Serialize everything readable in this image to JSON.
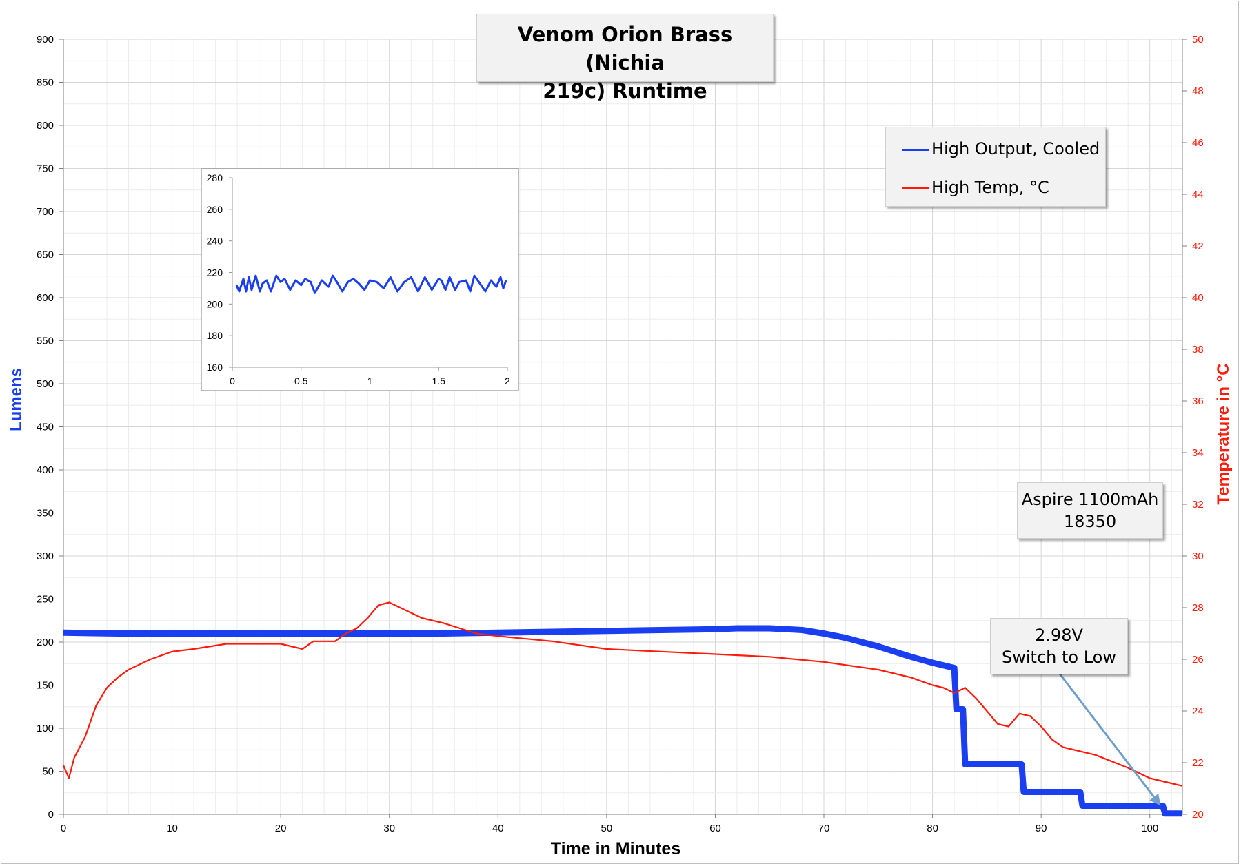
{
  "chart_data": {
    "type": "line",
    "title": "Venom Orion Brass (Nichia 219c) Runtime",
    "title_lines": [
      "Venom Orion Brass (Nichia",
      "219c) Runtime"
    ],
    "xlabel": "Time in Minutes",
    "ylabel": "Lumens",
    "y2label": "Temperature in °C",
    "xlim": [
      0,
      103
    ],
    "ylim": [
      0,
      900
    ],
    "y2lim": [
      20,
      50
    ],
    "xticks": [
      0,
      10,
      20,
      30,
      40,
      50,
      60,
      70,
      80,
      90,
      100
    ],
    "yticks": [
      0,
      50,
      100,
      150,
      200,
      250,
      300,
      350,
      400,
      450,
      500,
      550,
      600,
      650,
      700,
      750,
      800,
      850,
      900
    ],
    "y2ticks": [
      20,
      22,
      24,
      26,
      28,
      30,
      32,
      34,
      36,
      38,
      40,
      42,
      44,
      46,
      48,
      50
    ],
    "grid": true,
    "legend_position": "top-right",
    "series": [
      {
        "name": "High Output, Cooled",
        "axis": "left",
        "color": "#1a3ff0",
        "x": [
          0,
          5,
          10,
          15,
          20,
          25,
          30,
          35,
          40,
          45,
          50,
          55,
          60,
          62,
          65,
          68,
          70,
          72,
          75,
          78,
          80,
          82,
          82.2,
          82.8,
          83.0,
          88.2,
          88.4,
          93.6,
          93.8,
          101.2,
          101.4,
          103
        ],
        "y": [
          211,
          210,
          210,
          210,
          210,
          210,
          210,
          210,
          211,
          212,
          213,
          214,
          215,
          216,
          216,
          214,
          210,
          205,
          195,
          183,
          176,
          170,
          122,
          122,
          58,
          58,
          26,
          26,
          10,
          10,
          1,
          1
        ]
      },
      {
        "name": "High Temp, °C",
        "axis": "right",
        "color": "#ff1a0a",
        "x": [
          0,
          0.5,
          1,
          2,
          3,
          4,
          5,
          6,
          7,
          8,
          10,
          12,
          15,
          18,
          20,
          22,
          23,
          25,
          26,
          27,
          28,
          29,
          30,
          31,
          32,
          33,
          35,
          38,
          40,
          45,
          50,
          55,
          60,
          65,
          70,
          75,
          78,
          80,
          81,
          82,
          83,
          84,
          85,
          86,
          87,
          88,
          89,
          90,
          91,
          92,
          95,
          98,
          100,
          102,
          103
        ],
        "y": [
          21.9,
          21.4,
          22.2,
          23.0,
          24.2,
          24.9,
          25.3,
          25.6,
          25.8,
          26.0,
          26.3,
          26.4,
          26.6,
          26.6,
          26.6,
          26.4,
          26.7,
          26.7,
          27.0,
          27.2,
          27.6,
          28.1,
          28.2,
          28.0,
          27.8,
          27.6,
          27.4,
          27.0,
          26.9,
          26.7,
          26.4,
          26.3,
          26.2,
          26.1,
          25.9,
          25.6,
          25.3,
          25.0,
          24.9,
          24.7,
          24.9,
          24.5,
          24.0,
          23.5,
          23.4,
          23.9,
          23.8,
          23.4,
          22.9,
          22.6,
          22.3,
          21.8,
          21.4,
          21.2,
          21.1
        ]
      }
    ],
    "inset": {
      "type": "line",
      "xlim": [
        0,
        2
      ],
      "ylim": [
        160,
        280
      ],
      "xticks": [
        0,
        0.5,
        1,
        1.5,
        2
      ],
      "xtick_labels": [
        "0",
        "0.5",
        "1",
        "1.5",
        "2"
      ],
      "yticks": [
        160,
        180,
        200,
        220,
        240,
        260,
        280
      ],
      "color": "#1a3ff0",
      "x": [
        0.03,
        0.05,
        0.08,
        0.1,
        0.12,
        0.14,
        0.17,
        0.2,
        0.22,
        0.25,
        0.28,
        0.32,
        0.35,
        0.38,
        0.42,
        0.46,
        0.5,
        0.53,
        0.57,
        0.6,
        0.65,
        0.7,
        0.73,
        0.76,
        0.8,
        0.84,
        0.88,
        0.92,
        0.96,
        1.0,
        1.05,
        1.1,
        1.15,
        1.2,
        1.25,
        1.3,
        1.35,
        1.4,
        1.45,
        1.5,
        1.52,
        1.55,
        1.58,
        1.62,
        1.65,
        1.7,
        1.73,
        1.76,
        1.8,
        1.84,
        1.88,
        1.92,
        1.95,
        1.97,
        1.99
      ],
      "y": [
        212,
        208,
        216,
        208,
        217,
        209,
        218,
        208,
        213,
        215,
        208,
        218,
        214,
        216,
        209,
        215,
        212,
        216,
        214,
        207,
        215,
        211,
        218,
        214,
        208,
        214,
        216,
        213,
        209,
        215,
        214,
        210,
        217,
        208,
        214,
        217,
        208,
        217,
        209,
        216,
        215,
        209,
        217,
        209,
        214,
        215,
        208,
        218,
        213,
        208,
        215,
        211,
        217,
        210,
        215
      ]
    },
    "annotations": [
      {
        "id": "battery",
        "lines": [
          "Aspire 1100mAh",
          "18350"
        ]
      },
      {
        "id": "switch",
        "lines": [
          "2.98V",
          "Switch to Low"
        ],
        "arrow_to": {
          "x": 101,
          "y": 10
        }
      }
    ]
  }
}
